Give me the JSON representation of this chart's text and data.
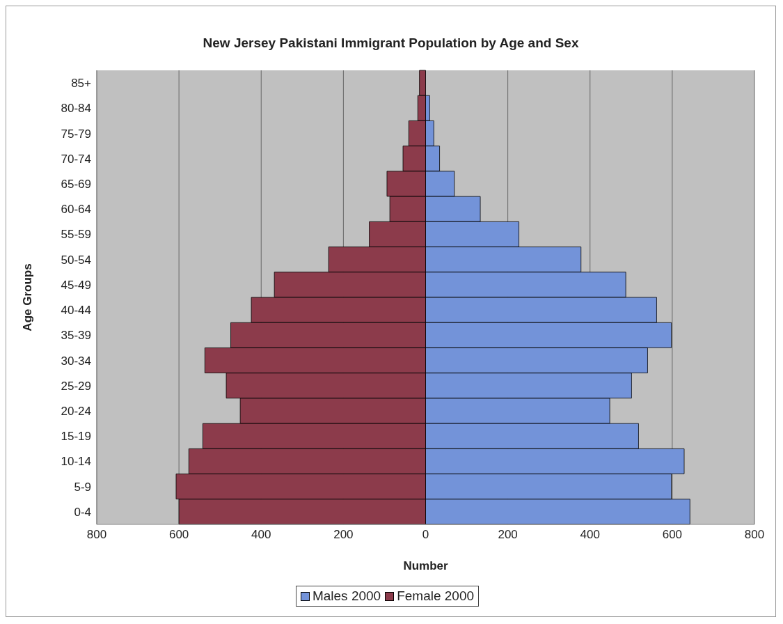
{
  "chart_data": {
    "type": "bar",
    "orientation": "horizontal",
    "stacked": true,
    "title": "New Jersey Pakistani Immigrant Population by Age and Sex",
    "xlabel": "Number",
    "ylabel": "Age Groups",
    "categories": [
      "85+",
      "80-84",
      "75-79",
      "70-74",
      "65-69",
      "60-64",
      "55-59",
      "50-54",
      "45-49",
      "40-44",
      "35-39",
      "30-34",
      "25-29",
      "20-24",
      "15-19",
      "10-14",
      "5-9",
      "0-4"
    ],
    "series": [
      {
        "name": "Males 2000",
        "color": "#7393d9",
        "values": [
          0,
          10,
          20,
          34,
          70,
          133,
          227,
          378,
          487,
          562,
          598,
          540,
          501,
          448,
          518,
          629,
          598,
          643
        ]
      },
      {
        "name": "Female 2000",
        "color": "#8c3b4b",
        "values": [
          -15,
          -19,
          -41,
          -55,
          -94,
          -87,
          -137,
          -236,
          -368,
          -424,
          -474,
          -537,
          -485,
          -451,
          -542,
          -576,
          -607,
          -600
        ]
      }
    ],
    "xlim": [
      -800,
      800
    ],
    "xticks": [
      {
        "value": -800,
        "label": "800"
      },
      {
        "value": -600,
        "label": "600"
      },
      {
        "value": -400,
        "label": "400"
      },
      {
        "value": -200,
        "label": "200"
      },
      0,
      200,
      400,
      600,
      800
    ],
    "grid": "x",
    "legend": "bottom"
  }
}
